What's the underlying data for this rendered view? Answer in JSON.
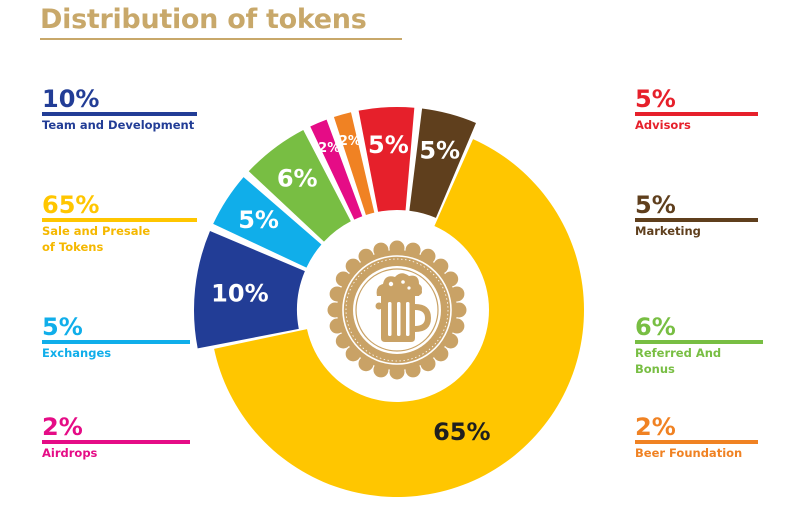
{
  "title": "Distribution of tokens",
  "chart_data": {
    "type": "pie",
    "style": "exploded-donut",
    "title": "Distribution of tokens",
    "slices": [
      {
        "label": "Sale and Presale of Tokens",
        "value": 65,
        "display": "65%",
        "color": "#FFC600",
        "text_color": "#1f1f1f"
      },
      {
        "label": "Team and Development",
        "value": 10,
        "display": "10%",
        "color": "#223D96",
        "text_color": "#ffffff"
      },
      {
        "label": "Exchanges",
        "value": 5,
        "display": "5%",
        "color": "#10AEEA",
        "text_color": "#ffffff"
      },
      {
        "label": "Referred And Bonus",
        "value": 6,
        "display": "6%",
        "color": "#78BE43",
        "text_color": "#ffffff"
      },
      {
        "label": "Airdrops",
        "value": 2,
        "display": "2%",
        "color": "#E50C86",
        "text_color": "#ffffff"
      },
      {
        "label": "Beer Foundation",
        "value": 2,
        "display": "2%",
        "color": "#F08223",
        "text_color": "#ffffff"
      },
      {
        "label": "Advisors",
        "value": 5,
        "display": "5%",
        "color": "#E6202B",
        "text_color": "#ffffff"
      },
      {
        "label": "Marketing",
        "value": 5,
        "display": "5%",
        "color": "#5F3F1D",
        "text_color": "#ffffff"
      }
    ],
    "center_emblem": "beer-mug-seal-icon",
    "emblem_color": "#C9A266"
  },
  "legend": {
    "left": [
      {
        "pct": "10%",
        "label": "Team and Development",
        "color": "#223D96"
      },
      {
        "pct": "65%",
        "label": "Sale and Presale\nof Tokens",
        "color": "#FFC600"
      },
      {
        "pct": "5%",
        "label": "Exchanges",
        "color": "#10AEEA"
      },
      {
        "pct": "2%",
        "label": "Airdrops",
        "color": "#E50C86"
      }
    ],
    "right": [
      {
        "pct": "5%",
        "label": "Advisors",
        "color": "#E6202B"
      },
      {
        "pct": "5%",
        "label": "Marketing",
        "color": "#5F3F1D"
      },
      {
        "pct": "6%",
        "label": "Referred And Bonus",
        "color": "#78BE43"
      },
      {
        "pct": "2%",
        "label": "Beer Foundation",
        "color": "#F08223"
      }
    ]
  }
}
